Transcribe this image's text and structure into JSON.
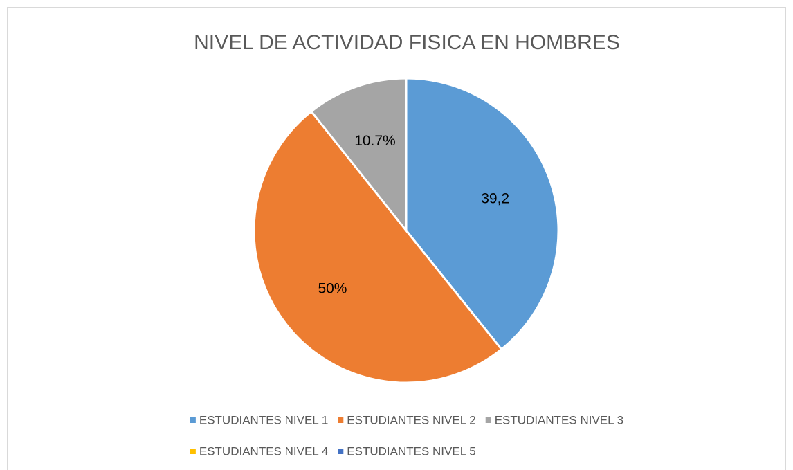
{
  "chart_data": {
    "type": "pie",
    "title": "NIVEL DE ACTIVIDAD FISICA EN HOMBRES",
    "categories": [
      "ESTUDIANTES NIVEL 1",
      "ESTUDIANTES NIVEL 2",
      "ESTUDIANTES NIVEL 3",
      "ESTUDIANTES NIVEL 4",
      "ESTUDIANTES NIVEL 5"
    ],
    "values": [
      39.2,
      50,
      10.7,
      0,
      0
    ],
    "value_labels": [
      "39,2",
      "50%",
      "10.7%",
      null,
      null
    ],
    "colors": [
      "#5b9bd5",
      "#ed7d31",
      "#a5a5a5",
      "#ffc000",
      "#4472c4"
    ],
    "legend": "bottom"
  }
}
